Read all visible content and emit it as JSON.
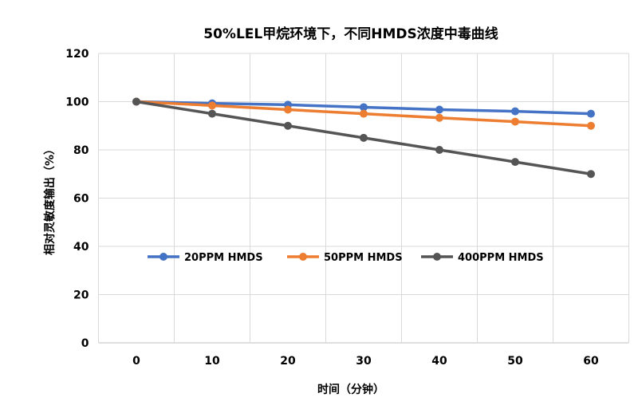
{
  "chart_data": {
    "type": "line",
    "title": "50%LEL甲烷环境下，不同HMDS浓度中毒曲线",
    "xlabel": "时间（分钟）",
    "ylabel": "相对灵敏度输出（%）",
    "categories": [
      "0",
      "10",
      "20",
      "30",
      "40",
      "50",
      "60"
    ],
    "x": [
      0,
      10,
      20,
      30,
      40,
      50,
      60
    ],
    "ylim": [
      0,
      120
    ],
    "yticks": [
      "0",
      "20",
      "40",
      "60",
      "80",
      "100",
      "120"
    ],
    "grid": true,
    "legend_position": "center",
    "series": [
      {
        "name": "20PPM HMDS",
        "color": "#4472C4",
        "values": [
          100,
          99.3,
          98.7,
          97.7,
          96.7,
          96,
          95
        ]
      },
      {
        "name": "50PPM HMDS",
        "color": "#ED7D31",
        "values": [
          100,
          98.4,
          96.7,
          95,
          93.3,
          91.7,
          90
        ]
      },
      {
        "name": "400PPM HMDS",
        "color": "#555555",
        "values": [
          100,
          95,
          90,
          85,
          80,
          75,
          70
        ]
      }
    ]
  }
}
